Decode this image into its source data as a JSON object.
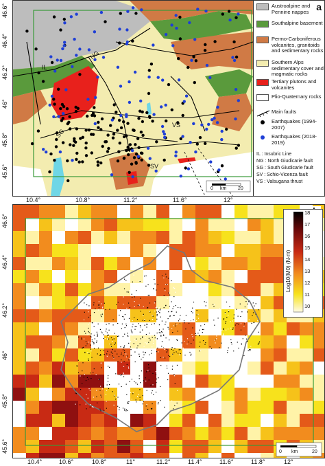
{
  "panel_a": {
    "letter": "a",
    "y_ticks": [
      "46.6°",
      "46.4°",
      "46.2°",
      "46°",
      "45.8°",
      "45.6°"
    ],
    "x_ticks": [
      "10.4°",
      "10.8°",
      "11.2°",
      "11.6°",
      "12°"
    ],
    "legend": [
      {
        "label": "Austroalpine and Pennine nappes",
        "color": "#bdbdbd"
      },
      {
        "label": "Southalpine basement",
        "color": "#5a9a3c"
      },
      {
        "label": "Permo-Carboniferous volcanites, granitoids and sedimentary rocks",
        "color": "#d07a45"
      },
      {
        "label": "Southern Alps sedimentary cover and magmatic rocks",
        "color": "#f3ecb0"
      },
      {
        "label": "Tertiary plutons and volcanites",
        "color": "#e8211c"
      },
      {
        "label": "Plio-Quaternary rocks",
        "color": "#ffffff"
      }
    ],
    "faults_label": "Main faults",
    "eq_old_label": "Earthquakes (1994-2007)",
    "eq_new_label": "Earthquakes (2018-2019)",
    "notes": [
      "IL : Insubric Line",
      "NG : North Giudicarie fault",
      "SG : South Giudicarie fault",
      "SV : Schio-Vicenza fault",
      "VS : Valsugana thrust"
    ],
    "map_labels": [
      "IL",
      "NG",
      "VS",
      "SG",
      "SV"
    ],
    "scale": {
      "zero": "0",
      "unit": "km",
      "end": "20"
    }
  },
  "panel_b": {
    "letter": "b",
    "y_ticks": [
      "46.6°",
      "46.4°",
      "46.2°",
      "46°",
      "45.8°",
      "45.6°"
    ],
    "x_ticks": [
      "10.4°",
      "10.6°",
      "10.8°",
      "11°",
      "11.2°",
      "11.4°",
      "11.6°",
      "11.8°",
      "12°"
    ],
    "colorbar": {
      "title": "Log10(M0) (N·m)",
      "ticks": [
        "18",
        "17",
        "16",
        "15",
        "14",
        "13",
        "12",
        "11",
        "10"
      ]
    },
    "scale": {
      "zero": "0",
      "unit": "km",
      "end": "20"
    }
  },
  "colors": {
    "frame_green": "#3a9a3a",
    "eq_old": "#000000",
    "eq_new": "#1f3fd6",
    "lake": "#6fd6e6"
  }
}
